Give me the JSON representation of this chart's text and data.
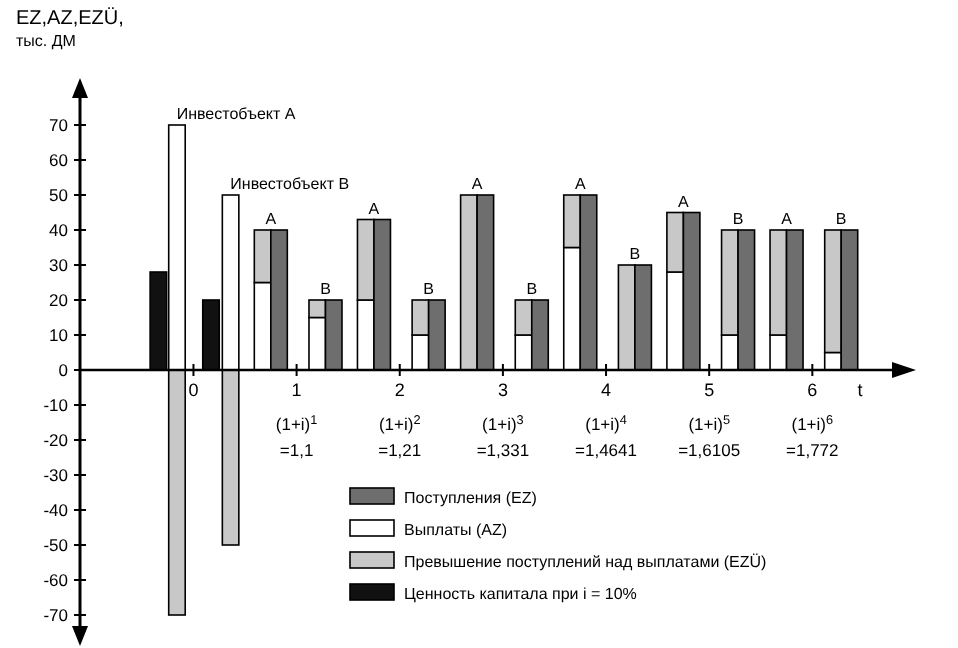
{
  "chart_data": {
    "type": "bar",
    "stacked": true,
    "x": [
      -0.34,
      -0.16,
      0.17,
      0.36,
      0.67,
      0.83,
      1.2,
      1.36,
      1.67,
      1.83,
      2.2,
      2.36,
      2.67,
      2.83,
      3.2,
      3.36,
      3.67,
      3.83,
      4.2,
      4.36,
      4.67,
      4.83,
      5.2,
      5.36,
      5.67,
      5.83,
      6.2,
      6.36
    ],
    "xlabel": "t",
    "ylabel": "EZ,AZ,EZÜ, тыс. ДМ",
    "xlim": [
      -1.1,
      6.85
    ],
    "xticks": [
      0,
      1,
      2,
      3,
      4,
      5,
      6
    ],
    "ylim": [
      -76,
      80
    ],
    "yticks": [
      -70,
      -60,
      -50,
      -40,
      -30,
      -20,
      -10,
      0,
      10,
      20,
      30,
      40,
      50,
      60,
      70
    ],
    "grid": false,
    "legend": "bottom right",
    "series": [
      {
        "name": "Выплаты (AZ)",
        "color": "#ffffff",
        "values": [
          null,
          70,
          null,
          50,
          25,
          null,
          15,
          null,
          20,
          null,
          10,
          null,
          null,
          null,
          10,
          null,
          35,
          null,
          null,
          null,
          28,
          null,
          10,
          null,
          10,
          null,
          5,
          null
        ]
      },
      {
        "name": "Превышение поступлений над выплатами (EZÜ)",
        "color": "#c8c8c8",
        "values": [
          null,
          -70,
          null,
          -50,
          15,
          null,
          5,
          null,
          23,
          null,
          10,
          null,
          50,
          null,
          10,
          null,
          15,
          null,
          30,
          null,
          17,
          null,
          30,
          null,
          30,
          null,
          35,
          null
        ]
      },
      {
        "name": "Поступления (EZ)",
        "color": "#6e6e6e",
        "values": [
          null,
          null,
          null,
          null,
          null,
          40,
          null,
          20,
          null,
          43,
          null,
          20,
          null,
          50,
          null,
          20,
          null,
          50,
          null,
          30,
          null,
          45,
          null,
          40,
          null,
          40,
          null,
          40
        ]
      },
      {
        "name": "Ценность капитала при i = 10%",
        "color": "#111111",
        "values": [
          28,
          null,
          20,
          null,
          null,
          null,
          null,
          null,
          null,
          null,
          null,
          null,
          null,
          null,
          null,
          null,
          null,
          null,
          null,
          null,
          null,
          null,
          null,
          null,
          null,
          null,
          null,
          null
        ]
      }
    ],
    "annotations": [
      {
        "text": "Инвестобъект А",
        "x": -0.16,
        "y": 70
      },
      {
        "text": "Инвестобъект В",
        "x": 0.36,
        "y": 50
      },
      {
        "text": "A",
        "x": 0.75,
        "y": 40
      },
      {
        "text": "B",
        "x": 1.28,
        "y": 20
      },
      {
        "text": "A",
        "x": 1.75,
        "y": 43
      },
      {
        "text": "B",
        "x": 2.28,
        "y": 20
      },
      {
        "text": "A",
        "x": 2.75,
        "y": 50
      },
      {
        "text": "B",
        "x": 3.28,
        "y": 20
      },
      {
        "text": "A",
        "x": 3.75,
        "y": 50
      },
      {
        "text": "B",
        "x": 4.28,
        "y": 30
      },
      {
        "text": "A",
        "x": 4.75,
        "y": 45
      },
      {
        "text": "B",
        "x": 5.28,
        "y": 40
      },
      {
        "text": "A",
        "x": 5.75,
        "y": 40
      },
      {
        "text": "B",
        "x": 6.28,
        "y": 40
      },
      "(1+i)$^{1}$ =1,1",
      "(1+i)$^{2}$ =1,21",
      "(1+i)$^{3}$ =1,331",
      "(1+i)$^{4}$ =1,4641",
      "(1+i)$^{5}$ =1,6105",
      "(1+i)$^{6}$ =1,772"
    ]
  }
}
